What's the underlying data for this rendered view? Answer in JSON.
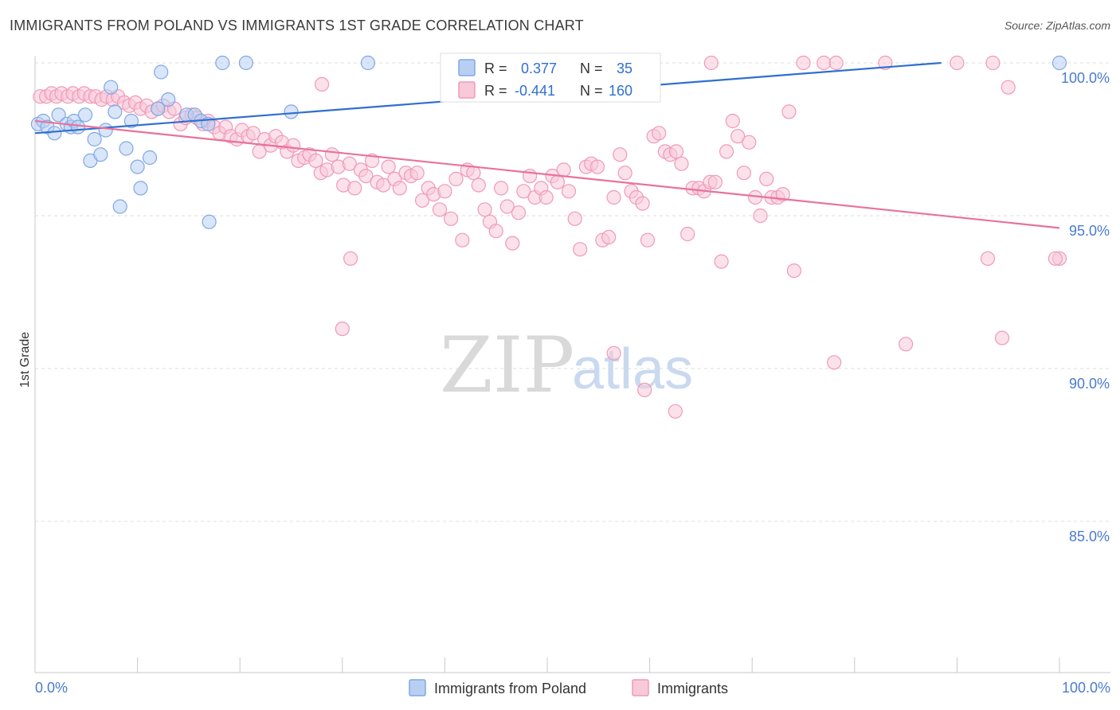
{
  "title": "IMMIGRANTS FROM POLAND VS IMMIGRANTS 1ST GRADE CORRELATION CHART",
  "source": "Source: ZipAtlas.com",
  "watermark": {
    "zip": "ZIP",
    "atlas": "atlas"
  },
  "colors": {
    "blue": "#7fa8e6",
    "blue_fill": "#b9cff2",
    "blue_line": "#2f6fcf",
    "pink": "#f09ab6",
    "pink_fill": "#f8c9d8",
    "pink_line": "#e8729a",
    "tick_text": "#4a7bd0"
  },
  "legend": {
    "r_label": "R =",
    "n_label": "N =",
    "series": [
      {
        "r": "0.377",
        "n": "35"
      },
      {
        "r": "-0.441",
        "n": "160"
      }
    ]
  },
  "bottom_legend": [
    "Immigrants from Poland",
    "Immigrants"
  ],
  "chart_data": {
    "type": "scatter",
    "title": "IMMIGRANTS FROM POLAND VS IMMIGRANTS 1ST GRADE CORRELATION CHART",
    "xlabel": "",
    "ylabel": "1st Grade",
    "xlim": [
      0,
      100
    ],
    "ylim": [
      80.3,
      100.5
    ],
    "x_tick_labels": [
      "0.0%",
      "100.0%"
    ],
    "y_ticks": [
      85,
      90,
      95,
      100
    ],
    "y_tick_labels": [
      "85.0%",
      "90.0%",
      "95.0%",
      "100.0%"
    ],
    "grid": "horizontal dashed",
    "legend_position": "top-center",
    "series": [
      {
        "name": "Immigrants from Poland",
        "r": 0.377,
        "n": 35,
        "trend": [
          [
            0,
            97.7
          ],
          [
            100,
            100.3
          ]
        ],
        "points": [
          [
            0.3,
            98.0
          ],
          [
            0.8,
            98.1
          ],
          [
            1.2,
            97.9
          ],
          [
            1.9,
            97.7
          ],
          [
            2.3,
            98.3
          ],
          [
            3.1,
            98.0
          ],
          [
            3.5,
            97.9
          ],
          [
            3.8,
            98.1
          ],
          [
            4.2,
            97.9
          ],
          [
            4.9,
            98.3
          ],
          [
            5.4,
            96.8
          ],
          [
            5.8,
            97.5
          ],
          [
            6.4,
            97.0
          ],
          [
            6.9,
            97.8
          ],
          [
            7.4,
            99.2
          ],
          [
            7.8,
            98.4
          ],
          [
            8.9,
            97.2
          ],
          [
            9.4,
            98.1
          ],
          [
            10.0,
            96.6
          ],
          [
            10.3,
            95.9
          ],
          [
            11.2,
            96.9
          ],
          [
            12.0,
            98.5
          ],
          [
            12.3,
            99.7
          ],
          [
            13.0,
            98.8
          ],
          [
            14.8,
            98.3
          ],
          [
            15.6,
            98.3
          ],
          [
            16.2,
            98.1
          ],
          [
            17.0,
            94.8
          ],
          [
            18.3,
            100.0
          ],
          [
            20.6,
            100.0
          ],
          [
            25.0,
            98.4
          ],
          [
            32.5,
            100.0
          ],
          [
            100.0,
            100.0
          ],
          [
            8.3,
            95.3
          ],
          [
            16.9,
            98.0
          ]
        ]
      },
      {
        "name": "Immigrants",
        "r": -0.441,
        "n": 160,
        "trend": [
          [
            0,
            98.1
          ],
          [
            100,
            94.6
          ]
        ],
        "points": [
          [
            0.5,
            98.9
          ],
          [
            1.1,
            98.9
          ],
          [
            1.6,
            99.0
          ],
          [
            2.1,
            98.9
          ],
          [
            2.6,
            99.0
          ],
          [
            3.2,
            98.9
          ],
          [
            3.7,
            99.0
          ],
          [
            4.3,
            98.9
          ],
          [
            4.8,
            99.0
          ],
          [
            5.4,
            98.9
          ],
          [
            5.9,
            98.9
          ],
          [
            6.5,
            98.8
          ],
          [
            7.0,
            98.9
          ],
          [
            7.6,
            98.8
          ],
          [
            8.1,
            98.9
          ],
          [
            8.7,
            98.7
          ],
          [
            9.2,
            98.6
          ],
          [
            9.8,
            98.7
          ],
          [
            10.3,
            98.5
          ],
          [
            10.9,
            98.6
          ],
          [
            11.4,
            98.4
          ],
          [
            12.0,
            98.5
          ],
          [
            12.5,
            98.6
          ],
          [
            13.1,
            98.4
          ],
          [
            13.6,
            98.5
          ],
          [
            14.2,
            98.0
          ],
          [
            14.7,
            98.2
          ],
          [
            15.3,
            98.3
          ],
          [
            15.8,
            98.2
          ],
          [
            16.4,
            98.0
          ],
          [
            16.9,
            98.1
          ],
          [
            17.5,
            97.9
          ],
          [
            18.0,
            97.7
          ],
          [
            18.6,
            97.9
          ],
          [
            19.1,
            97.6
          ],
          [
            19.7,
            97.5
          ],
          [
            20.2,
            97.8
          ],
          [
            20.8,
            97.6
          ],
          [
            21.3,
            97.7
          ],
          [
            21.9,
            97.1
          ],
          [
            22.4,
            97.5
          ],
          [
            23.0,
            97.3
          ],
          [
            23.5,
            97.6
          ],
          [
            24.1,
            97.4
          ],
          [
            24.6,
            97.1
          ],
          [
            25.2,
            97.3
          ],
          [
            25.7,
            96.8
          ],
          [
            26.3,
            96.9
          ],
          [
            26.8,
            97.0
          ],
          [
            27.4,
            96.8
          ],
          [
            27.9,
            96.4
          ],
          [
            28.5,
            96.5
          ],
          [
            29.0,
            97.0
          ],
          [
            29.6,
            96.6
          ],
          [
            30.1,
            96.0
          ],
          [
            30.7,
            96.7
          ],
          [
            31.2,
            95.9
          ],
          [
            31.8,
            96.5
          ],
          [
            32.3,
            96.3
          ],
          [
            32.9,
            96.8
          ],
          [
            33.4,
            96.1
          ],
          [
            34.0,
            96.0
          ],
          [
            34.5,
            96.6
          ],
          [
            35.1,
            96.2
          ],
          [
            35.6,
            95.9
          ],
          [
            36.2,
            96.4
          ],
          [
            36.7,
            96.3
          ],
          [
            37.3,
            96.4
          ],
          [
            37.8,
            95.5
          ],
          [
            38.4,
            95.9
          ],
          [
            38.9,
            95.7
          ],
          [
            39.5,
            95.2
          ],
          [
            40.0,
            95.8
          ],
          [
            40.6,
            94.9
          ],
          [
            41.1,
            96.2
          ],
          [
            41.7,
            94.2
          ],
          [
            42.2,
            96.5
          ],
          [
            42.8,
            96.4
          ],
          [
            43.3,
            96.0
          ],
          [
            43.9,
            95.2
          ],
          [
            44.4,
            94.8
          ],
          [
            45.0,
            94.5
          ],
          [
            45.5,
            95.9
          ],
          [
            46.1,
            95.3
          ],
          [
            46.6,
            94.1
          ],
          [
            47.2,
            95.1
          ],
          [
            47.7,
            95.8
          ],
          [
            48.3,
            96.3
          ],
          [
            48.8,
            95.6
          ],
          [
            49.4,
            95.9
          ],
          [
            49.9,
            95.6
          ],
          [
            50.5,
            96.3
          ],
          [
            51.0,
            96.1
          ],
          [
            51.6,
            96.5
          ],
          [
            52.1,
            95.8
          ],
          [
            52.7,
            94.9
          ],
          [
            53.2,
            93.9
          ],
          [
            53.8,
            96.6
          ],
          [
            54.3,
            96.7
          ],
          [
            54.9,
            96.6
          ],
          [
            55.4,
            94.2
          ],
          [
            56.0,
            94.3
          ],
          [
            56.5,
            95.6
          ],
          [
            57.1,
            97.0
          ],
          [
            57.6,
            96.4
          ],
          [
            58.2,
            95.8
          ],
          [
            58.7,
            95.6
          ],
          [
            59.3,
            95.4
          ],
          [
            59.8,
            94.2
          ],
          [
            60.4,
            97.6
          ],
          [
            60.9,
            97.7
          ],
          [
            61.5,
            97.1
          ],
          [
            62.0,
            97.0
          ],
          [
            62.6,
            97.1
          ],
          [
            63.1,
            96.7
          ],
          [
            63.7,
            94.4
          ],
          [
            64.2,
            95.9
          ],
          [
            64.8,
            95.9
          ],
          [
            65.3,
            95.8
          ],
          [
            65.9,
            96.1
          ],
          [
            66.4,
            96.1
          ],
          [
            67.0,
            93.5
          ],
          [
            67.5,
            97.1
          ],
          [
            68.1,
            98.1
          ],
          [
            68.6,
            97.6
          ],
          [
            69.2,
            96.4
          ],
          [
            69.7,
            97.4
          ],
          [
            70.3,
            95.6
          ],
          [
            70.8,
            95.0
          ],
          [
            71.4,
            96.2
          ],
          [
            71.9,
            95.6
          ],
          [
            72.5,
            95.6
          ],
          [
            73.0,
            95.7
          ],
          [
            73.6,
            98.4
          ],
          [
            74.1,
            93.2
          ],
          [
            30.0,
            91.3
          ],
          [
            28.0,
            99.3
          ],
          [
            56.5,
            90.5
          ],
          [
            59.5,
            89.3
          ],
          [
            62.5,
            88.6
          ],
          [
            78.0,
            90.2
          ],
          [
            85.0,
            90.8
          ],
          [
            93.0,
            93.6
          ],
          [
            100.0,
            93.6
          ],
          [
            95.0,
            99.2
          ],
          [
            66.0,
            100.0
          ],
          [
            75.0,
            100.0
          ],
          [
            77.0,
            100.0
          ],
          [
            78.2,
            100.0
          ],
          [
            83.0,
            100.0
          ],
          [
            90.0,
            100.0
          ],
          [
            93.5,
            100.0
          ],
          [
            99.6,
            93.6
          ],
          [
            30.8,
            93.6
          ],
          [
            94.4,
            91.0
          ]
        ]
      }
    ]
  }
}
